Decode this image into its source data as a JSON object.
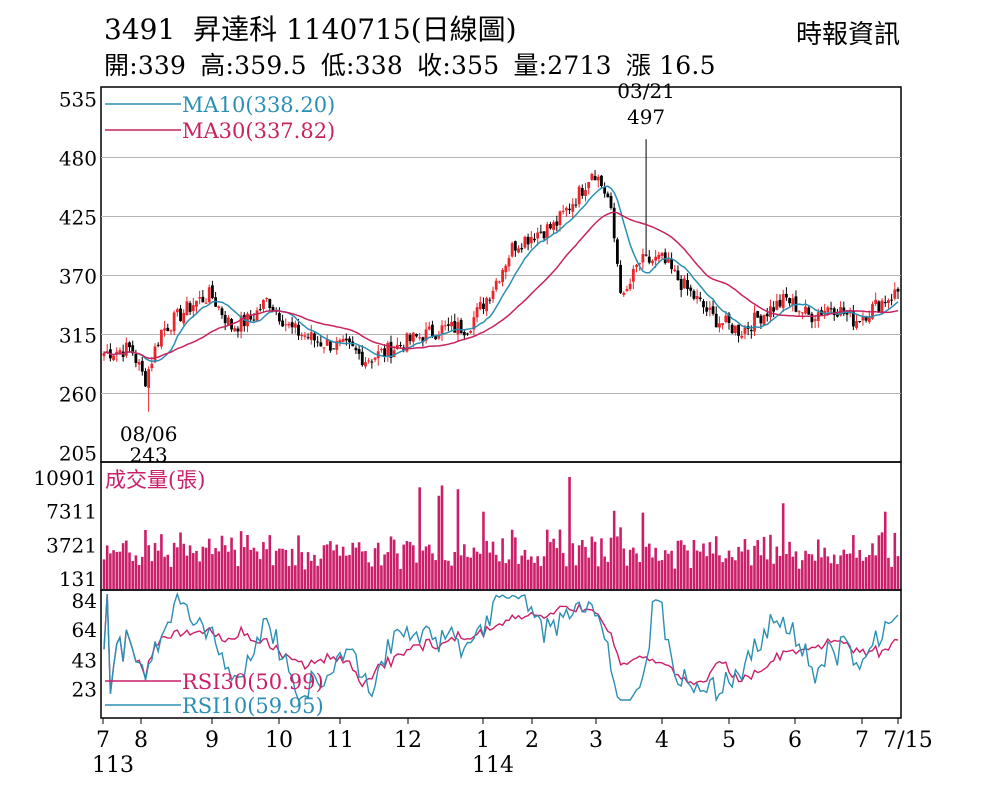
{
  "header": {
    "code": "3491",
    "name": "昇達科",
    "date": "1140715",
    "chart_kind": "(日線圖)",
    "source": "時報資訊"
  },
  "quote": {
    "open": "開:339",
    "high": "高:359.5",
    "low": "低:338",
    "close": "收:355",
    "volume": "量:2713",
    "change": "漲 16.5"
  },
  "colors": {
    "up": "#e8262c",
    "down": "#000000",
    "ma10": "#2a8fb3",
    "ma30": "#c8235f",
    "volume": "#cc1f6a",
    "rsi30": "#cc1f6a",
    "rsi10": "#2a8fb3",
    "grid": "#b4b4b4"
  },
  "chart_data": [
    {
      "type": "candlestick",
      "ylim": [
        205,
        535
      ],
      "yticks": [
        "535",
        "480",
        "425",
        "370",
        "315",
        "260",
        "205"
      ],
      "grid": true,
      "legend": [
        {
          "label": "MA10(338.20)",
          "key": "ma10"
        },
        {
          "label": "MA30(337.82)",
          "key": "ma30"
        }
      ],
      "annotations": [
        {
          "date": "03/21",
          "value": "497",
          "x": "03/21",
          "y": 497
        },
        {
          "date": "08/06",
          "value": "243",
          "x": "08/06",
          "y": 243
        }
      ],
      "last_close": 355
    },
    {
      "type": "bar",
      "label": "成交量(張)",
      "yticks": [
        "10901",
        "7311",
        "3721",
        "131"
      ],
      "ylim": [
        131,
        10901
      ]
    },
    {
      "type": "line",
      "ylim": [
        15,
        88
      ],
      "yticks": [
        "84",
        "64",
        "43",
        "23"
      ],
      "legend": [
        {
          "label": "RSI30(50.99)",
          "key": "rsi30"
        },
        {
          "label": "RSI10(59.95)",
          "key": "rsi10"
        }
      ]
    }
  ],
  "xaxis": {
    "months": [
      "7",
      "8",
      "9",
      "10",
      "11",
      "12",
      "1",
      "2",
      "3",
      "4",
      "5",
      "6",
      "7",
      "7/15"
    ],
    "years": [
      "113",
      "114"
    ]
  }
}
